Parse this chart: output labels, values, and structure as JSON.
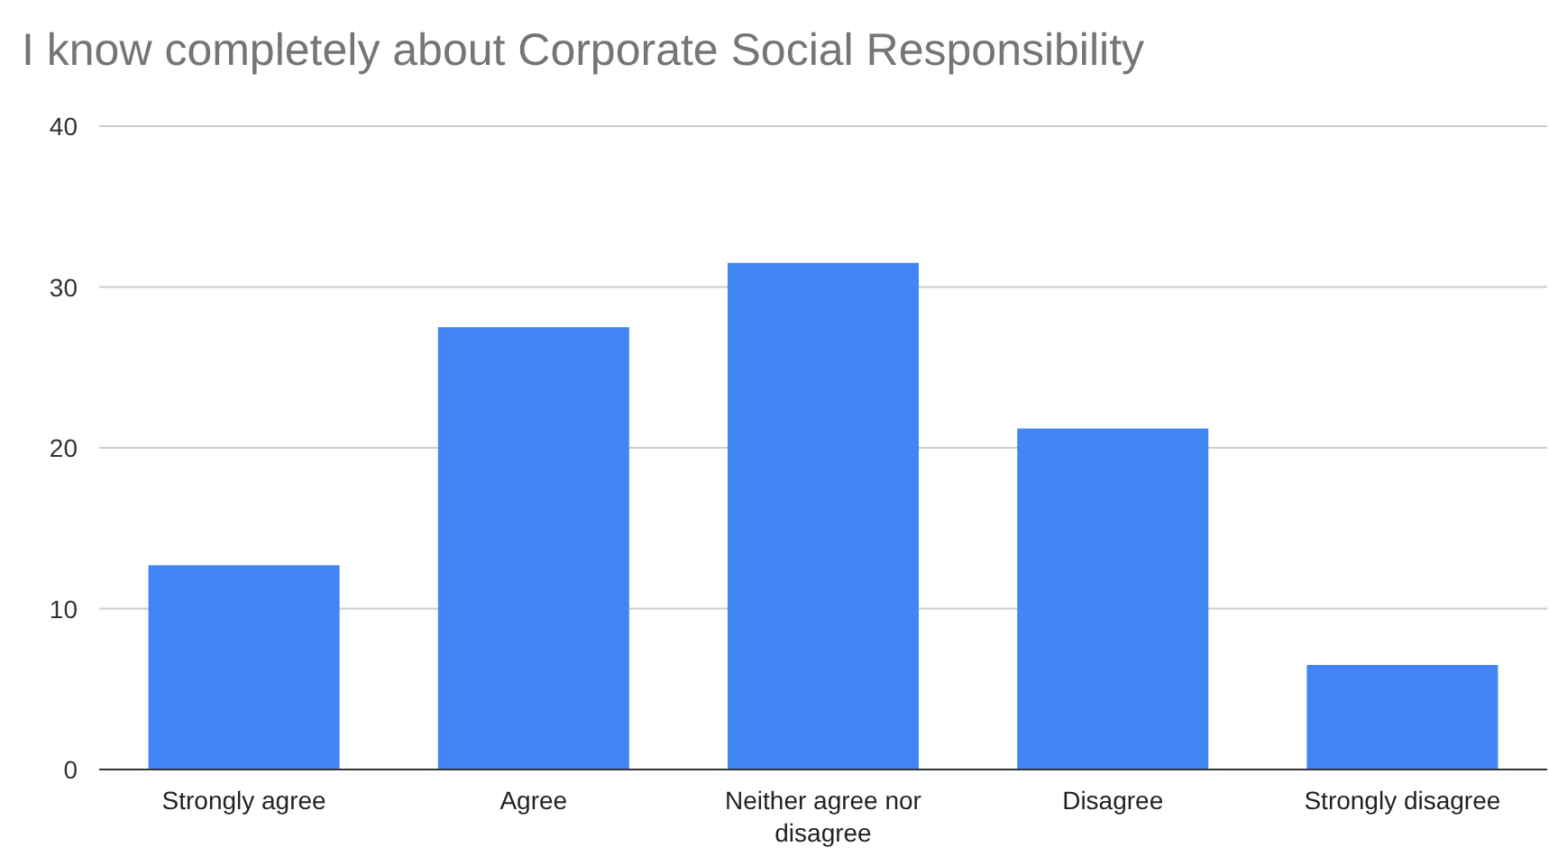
{
  "chart_data": {
    "type": "bar",
    "title": "I know completely about Corporate Social Responsibility",
    "categories": [
      "Strongly agree",
      "Agree",
      "Neither agree nor disagree",
      "Disagree",
      "Strongly disagree"
    ],
    "values": [
      12.7,
      27.5,
      31.5,
      21.2,
      6.5
    ],
    "color": "#4285f4",
    "ylim": [
      0,
      40
    ],
    "yticks": [
      0,
      10,
      20,
      30,
      40
    ],
    "grid": "y"
  }
}
